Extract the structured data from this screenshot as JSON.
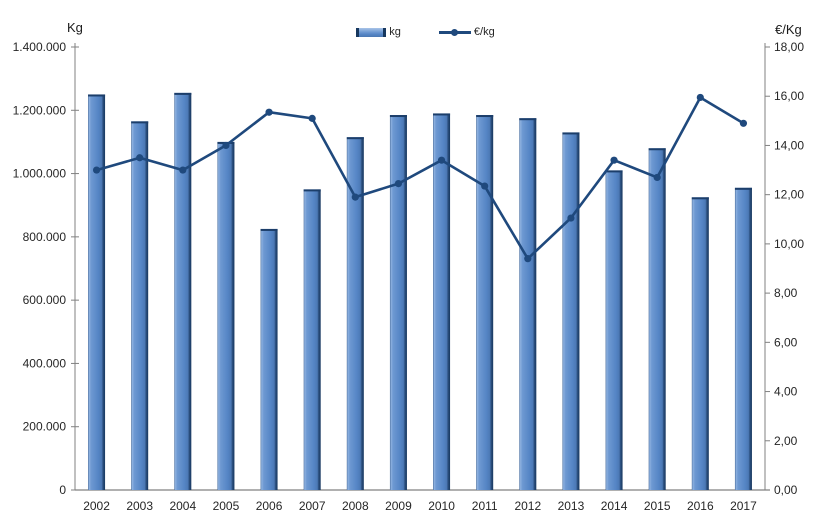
{
  "chart_data": {
    "type": "combo-bar-line",
    "categories": [
      "2002",
      "2003",
      "2004",
      "2005",
      "2006",
      "2007",
      "2008",
      "2009",
      "2010",
      "2011",
      "2012",
      "2013",
      "2014",
      "2015",
      "2016",
      "2017"
    ],
    "series": [
      {
        "name": "kg",
        "type": "bar",
        "axis": "left",
        "values": [
          1250000,
          1165000,
          1255000,
          1100000,
          825000,
          950000,
          1115000,
          1185000,
          1190000,
          1185000,
          1175000,
          1130000,
          1010000,
          1080000,
          925000,
          955000
        ]
      },
      {
        "name": "€/kg",
        "type": "line",
        "axis": "right",
        "values": [
          13.0,
          13.5,
          13.0,
          14.0,
          15.35,
          15.1,
          11.9,
          12.45,
          13.4,
          12.35,
          9.4,
          11.05,
          13.4,
          12.7,
          15.95,
          14.9
        ]
      }
    ],
    "left_axis": {
      "title": "Kg",
      "min": 0,
      "max": 1400000,
      "step": 200000,
      "tick_labels": [
        "0",
        "200.000",
        "400.000",
        "600.000",
        "800.000",
        "1.000.000",
        "1.200.000",
        "1.400.000"
      ]
    },
    "right_axis": {
      "title": "€/Kg",
      "min": 0,
      "max": 18,
      "step": 2,
      "tick_labels": [
        "0,00",
        "2,00",
        "4,00",
        "6,00",
        "8,00",
        "10,00",
        "12,00",
        "14,00",
        "16,00",
        "18,00"
      ]
    },
    "legend": {
      "position": "top-center",
      "entries": [
        "kg",
        "€/kg"
      ]
    },
    "grid": false,
    "colors": {
      "bar_fill": "#5585C5",
      "bar_highlight": "#8FB2E0",
      "bar_edge": "#17375E",
      "bar_top_edge": "#1C3E6A",
      "line": "#1F497D",
      "axis_line": "#808080",
      "text": "#262626",
      "background": "#FFFFFF"
    }
  }
}
